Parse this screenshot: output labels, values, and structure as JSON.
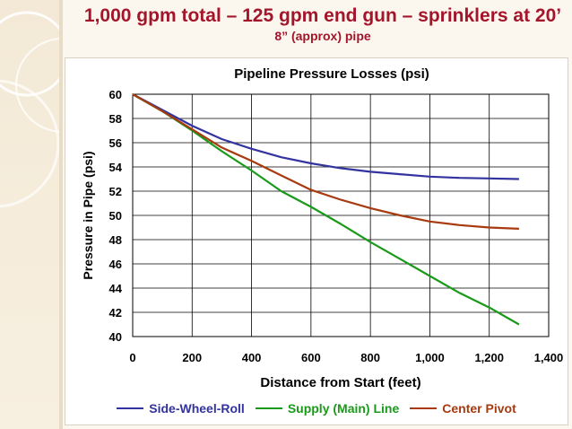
{
  "slide": {
    "title": "1,000 gpm total – 125 gpm end gun – sprinklers at 20’",
    "subtitle": "8” (approx) pipe"
  },
  "colors": {
    "title": "#a3152b"
  },
  "chart_data": {
    "type": "line",
    "title": "Pipeline Pressure Losses (psi)",
    "xlabel": "Distance from Start (feet)",
    "ylabel": "Pressure in Pipe (psi)",
    "xlim": [
      0,
      1400
    ],
    "ylim": [
      40,
      60
    ],
    "xticks": [
      0,
      200,
      400,
      600,
      800,
      1000,
      1200,
      1400
    ],
    "xtick_labels": [
      "0",
      "200",
      "400",
      "600",
      "800",
      "1,000",
      "1,200",
      "1,400"
    ],
    "yticks": [
      40,
      42,
      44,
      46,
      48,
      50,
      52,
      54,
      56,
      58,
      60
    ],
    "ytick_labels": [
      "40",
      "42",
      "44",
      "46",
      "48",
      "50",
      "52",
      "54",
      "56",
      "58",
      "60"
    ],
    "grid": true,
    "legend_position": "bottom",
    "series": [
      {
        "name": "Side-Wheel-Roll",
        "color": "#3333a0",
        "x": [
          0,
          100,
          200,
          300,
          400,
          500,
          600,
          700,
          800,
          900,
          1000,
          1100,
          1200,
          1300
        ],
        "y": [
          60,
          58.7,
          57.4,
          56.3,
          55.5,
          54.8,
          54.3,
          53.9,
          53.6,
          53.4,
          53.2,
          53.1,
          53.05,
          53.0
        ]
      },
      {
        "name": "Supply (Main) Line",
        "color": "#1a9a1a",
        "x": [
          0,
          100,
          200,
          300,
          400,
          500,
          600,
          700,
          800,
          900,
          1000,
          1100,
          1200,
          1300
        ],
        "y": [
          60,
          58.6,
          57.0,
          55.3,
          53.7,
          52.0,
          50.7,
          49.3,
          47.8,
          46.4,
          45.0,
          43.6,
          42.4,
          41.0
        ]
      },
      {
        "name": "Center Pivot",
        "color": "#a83a10",
        "x": [
          0,
          100,
          200,
          300,
          400,
          500,
          600,
          700,
          800,
          900,
          1000,
          1100,
          1200,
          1300
        ],
        "y": [
          60,
          58.6,
          57.1,
          55.6,
          54.5,
          53.3,
          52.1,
          51.3,
          50.6,
          50.0,
          49.5,
          49.2,
          49.0,
          48.9
        ]
      }
    ]
  }
}
